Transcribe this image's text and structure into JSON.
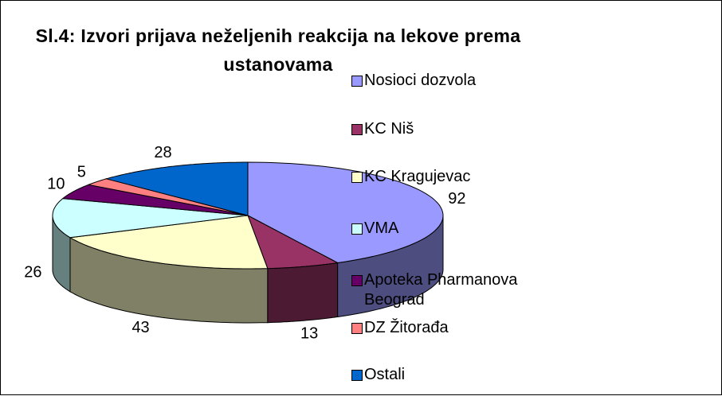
{
  "chart_data": {
    "type": "pie3d",
    "title": "Sl.4: Izvori prijava neželjenih reakcija na lekove prema ustanovama",
    "categories": [
      "Nosioci dozvola",
      "KC Niš",
      "KC Kragujevac",
      "VMA",
      "Apoteka Pharmanova Beograd",
      "DZ Žitorađa",
      "Ostali"
    ],
    "values": [
      92,
      13,
      43,
      26,
      10,
      5,
      28
    ],
    "colors": [
      "#9999ff",
      "#993366",
      "#ffffcc",
      "#ccffff",
      "#660066",
      "#ff8080",
      "#0066cc"
    ],
    "legend": "right"
  }
}
